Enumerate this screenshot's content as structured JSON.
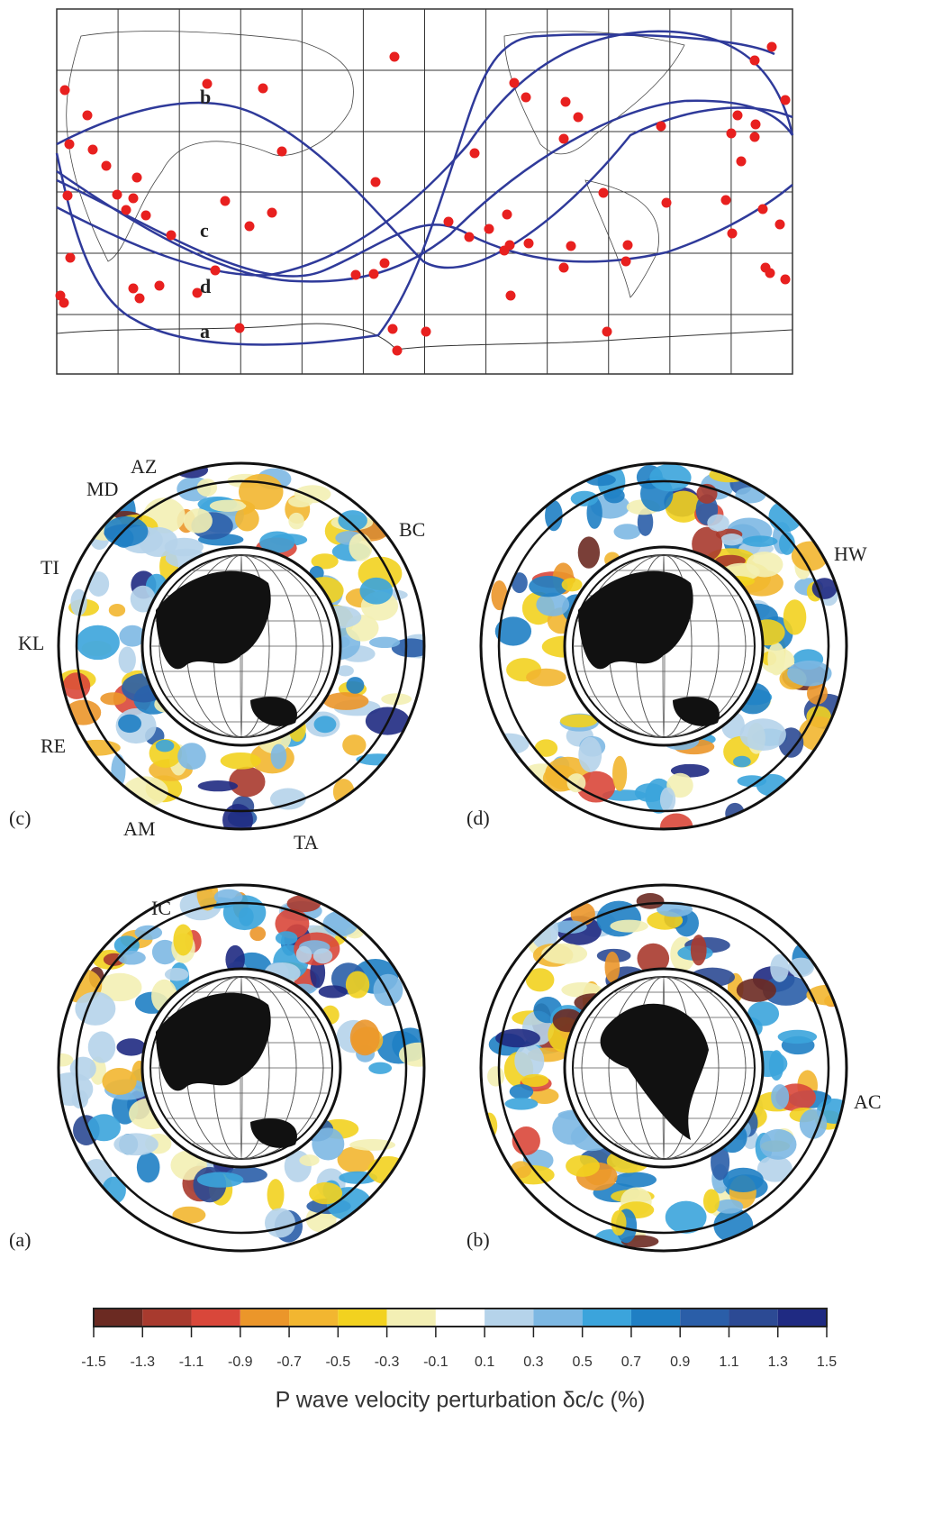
{
  "map": {
    "path_labels": [
      "a",
      "b",
      "c",
      "d"
    ]
  },
  "panels": [
    {
      "label": "(c)",
      "station_labels": [
        "AZ",
        "MD",
        "BC",
        "TI",
        "KL",
        "RE",
        "AM",
        "TA"
      ]
    },
    {
      "label": "(d)",
      "station_labels": [
        "HW"
      ]
    },
    {
      "label": "(a)",
      "station_labels": [
        "IC"
      ]
    },
    {
      "label": "(b)",
      "station_labels": [
        "AC"
      ]
    }
  ],
  "colorbar": {
    "title": "P wave velocity perturbation δc/c (%)",
    "ticks": [
      -1.5,
      -1.3,
      -1.1,
      -0.9,
      -0.7,
      -0.5,
      -0.3,
      -0.1,
      0.1,
      0.3,
      0.5,
      0.7,
      0.9,
      1.1,
      1.3,
      1.5
    ],
    "colors": [
      "#6b2a22",
      "#a83a2e",
      "#d9473a",
      "#eb962a",
      "#f2b630",
      "#f2d21f",
      "#f3efb4",
      "#ffffff",
      "#b5d3ea",
      "#7db8e3",
      "#3ba4dc",
      "#1f7fc4",
      "#2a5ea8",
      "#2c4a94",
      "#1f2a82"
    ]
  }
}
